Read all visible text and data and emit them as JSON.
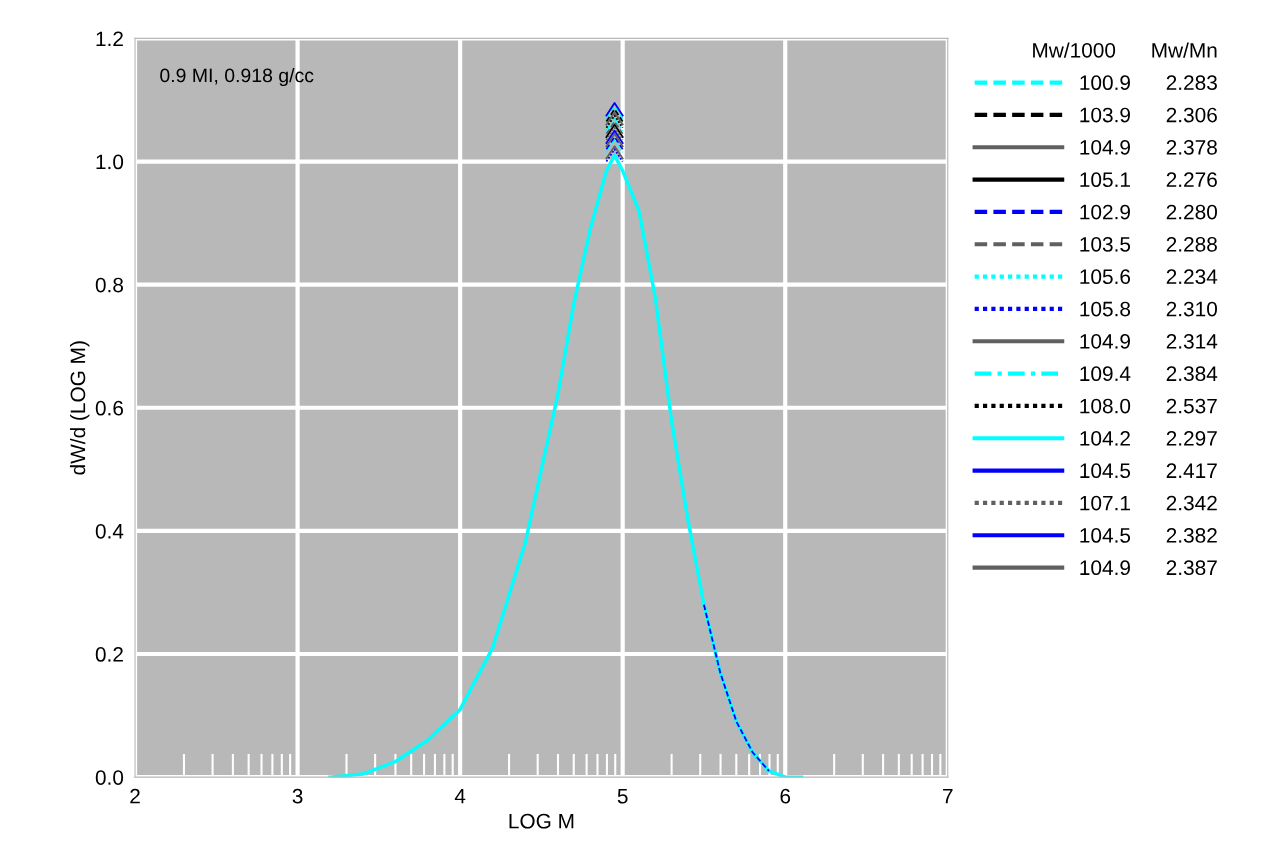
{
  "chart_data": {
    "type": "line",
    "xlabel": "LOG M",
    "ylabel": "dW/d (LOG M)",
    "annotations": [
      "0.9 MI, 0.918 g/cc"
    ],
    "legend_title": "Mw/1000      Mw/Mn",
    "legend": "right",
    "grid": true,
    "xlim": [
      2,
      7
    ],
    "ylim": [
      0,
      1.2
    ],
    "xticks": [
      2,
      3,
      4,
      5,
      6,
      7
    ],
    "yticks": [
      {
        "value": 0,
        "label": "0.0"
      },
      0.2,
      0.4,
      0.6,
      0.8,
      {
        "value": 1,
        "label": "1.0"
      },
      1.2
    ],
    "x": [
      3.2,
      3.4,
      3.6,
      3.8,
      4.0,
      4.2,
      4.4,
      4.6,
      4.7,
      4.8,
      4.9,
      4.95,
      5.0,
      5.1,
      5.2,
      5.3,
      5.4,
      5.5,
      5.6,
      5.7,
      5.8,
      5.9,
      6.0,
      6.1
    ],
    "series": [
      {
        "name": "100.9      2.283",
        "color": "#00ffff",
        "line_style": "dashed",
        "values": [
          null,
          null,
          null,
          null,
          null,
          null,
          null,
          null,
          null,
          null,
          1.07,
          1.09,
          1.07,
          null,
          null,
          null,
          null,
          null,
          null,
          null,
          null,
          null,
          null,
          null
        ]
      },
      {
        "name": "103.9      2.306",
        "color": "#000000",
        "line_style": "dashed",
        "values": [
          null,
          null,
          null,
          null,
          null,
          null,
          null,
          null,
          null,
          null,
          1.065,
          1.085,
          1.065,
          null,
          null,
          null,
          null,
          null,
          null,
          null,
          null,
          null,
          null,
          null
        ]
      },
      {
        "name": "104.9      2.378",
        "color": "#606060",
        "line_style": "solid",
        "values": [
          null,
          null,
          null,
          null,
          null,
          null,
          null,
          null,
          null,
          null,
          1.06,
          1.08,
          1.06,
          null,
          null,
          null,
          null,
          null,
          null,
          null,
          null,
          null,
          null,
          null
        ]
      },
      {
        "name": "105.1      2.276",
        "color": "#000000",
        "line_style": "solid",
        "values": [
          null,
          null,
          null,
          null,
          null,
          null,
          null,
          null,
          null,
          null,
          1.04,
          1.06,
          1.04,
          null,
          null,
          null,
          null,
          null,
          null,
          null,
          null,
          null,
          null,
          null
        ]
      },
      {
        "name": "102.9      2.280",
        "color": "#0000ff",
        "line_style": "dashed",
        "values": [
          null,
          null,
          null,
          null,
          null,
          null,
          null,
          null,
          null,
          null,
          1.02,
          1.04,
          1.02,
          null,
          null,
          null,
          null,
          0.28,
          0.17,
          0.09,
          0.04,
          0.01,
          null,
          null
        ]
      },
      {
        "name": "103.5      2.288",
        "color": "#606060",
        "line_style": "dashed",
        "values": [
          null,
          null,
          null,
          null,
          null,
          null,
          null,
          null,
          null,
          null,
          1.045,
          1.065,
          1.045,
          null,
          null,
          null,
          null,
          null,
          null,
          null,
          null,
          null,
          null,
          null
        ]
      },
      {
        "name": "105.6      2.234",
        "color": "#00ffff",
        "line_style": "dotted",
        "values": [
          null,
          null,
          null,
          null,
          null,
          null,
          null,
          null,
          null,
          null,
          1.015,
          1.035,
          1.015,
          null,
          null,
          null,
          null,
          null,
          null,
          null,
          null,
          null,
          null,
          null
        ]
      },
      {
        "name": "105.8      2.310",
        "color": "#0000ff",
        "line_style": "dotted",
        "values": [
          null,
          null,
          null,
          null,
          null,
          null,
          null,
          null,
          null,
          null,
          1.0,
          1.02,
          1.0,
          null,
          null,
          null,
          null,
          null,
          null,
          null,
          null,
          null,
          null,
          null
        ]
      },
      {
        "name": "104.9      2.314",
        "color": "#606060",
        "line_style": "solid",
        "values": [
          null,
          null,
          null,
          null,
          null,
          null,
          null,
          null,
          null,
          null,
          1.005,
          1.025,
          1.005,
          null,
          null,
          null,
          null,
          null,
          null,
          null,
          null,
          null,
          null,
          null
        ]
      },
      {
        "name": "109.4      2.384",
        "color": "#00ffff",
        "line_style": "dashdot",
        "values": [
          null,
          null,
          null,
          null,
          null,
          null,
          null,
          null,
          null,
          null,
          1.05,
          1.07,
          1.05,
          null,
          null,
          null,
          null,
          null,
          null,
          null,
          null,
          null,
          null,
          null
        ]
      },
      {
        "name": "108.0      2.537",
        "color": "#000000",
        "line_style": "dotted",
        "values": [
          null,
          null,
          null,
          null,
          null,
          null,
          null,
          null,
          null,
          null,
          1.055,
          1.075,
          1.055,
          null,
          null,
          null,
          null,
          null,
          null,
          null,
          null,
          null,
          null,
          null
        ]
      },
      {
        "name": "104.2      2.297",
        "color": "#00ffff",
        "line_style": "solid",
        "values": [
          0,
          0.005,
          0.025,
          0.06,
          0.11,
          0.21,
          0.38,
          0.62,
          0.77,
          0.89,
          0.985,
          1.01,
          0.985,
          0.92,
          0.78,
          0.58,
          0.42,
          0.28,
          0.17,
          0.09,
          0.04,
          0.01,
          0,
          0
        ]
      },
      {
        "name": "104.5      2.417",
        "color": "#0000ff",
        "line_style": "solid",
        "values": [
          null,
          null,
          null,
          null,
          null,
          null,
          null,
          null,
          null,
          null,
          1.03,
          1.05,
          1.03,
          null,
          null,
          null,
          null,
          null,
          null,
          null,
          null,
          null,
          null,
          null
        ]
      },
      {
        "name": "107.1      2.342",
        "color": "#606060",
        "line_style": "dotted",
        "values": [
          null,
          null,
          null,
          null,
          null,
          null,
          null,
          null,
          null,
          null,
          1.035,
          1.055,
          1.035,
          null,
          null,
          null,
          null,
          null,
          null,
          null,
          null,
          null,
          null,
          null
        ]
      },
      {
        "name": "104.5      2.382",
        "color": "#0000ff",
        "line_style": "solid",
        "values": [
          null,
          null,
          null,
          null,
          null,
          null,
          null,
          null,
          null,
          null,
          1.075,
          1.095,
          1.075,
          null,
          null,
          null,
          null,
          null,
          null,
          null,
          null,
          null,
          null,
          null
        ]
      },
      {
        "name": "104.9      2.387",
        "color": "#606060",
        "line_style": "solid",
        "values": [
          null,
          null,
          null,
          null,
          null,
          null,
          null,
          null,
          null,
          null,
          1.025,
          1.045,
          1.025,
          null,
          null,
          null,
          null,
          null,
          null,
          null,
          null,
          null,
          null,
          null
        ]
      }
    ]
  }
}
